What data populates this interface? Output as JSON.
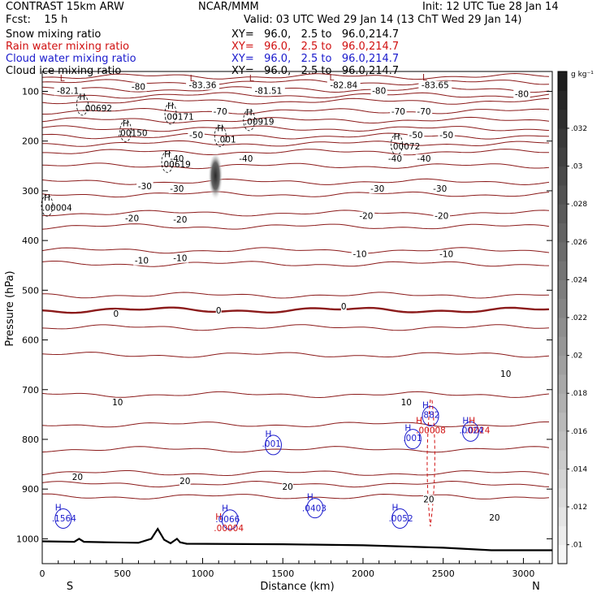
{
  "header": {
    "model": "CONTRAST 15km ARW",
    "org": "NCAR/MMM",
    "init": "Init: 12 UTC Tue 28 Jan 14",
    "fcst": "Fcst:    15 h",
    "valid": "Valid: 03 UTC Wed 29 Jan 14 (13 ChT Wed 29 Jan 14)",
    "fields": [
      {
        "name": "Snow mixing ratio",
        "xy": "XY=   96.0,   2.5 to   96.0,214.7",
        "color": "#000000"
      },
      {
        "name": "Rain water mixing ratio",
        "xy": "XY=   96.0,   2.5 to   96.0,214.7",
        "color": "#d01010"
      },
      {
        "name": "Cloud water mixing ratio",
        "xy": "XY=   96.0,   2.5 to   96.0,214.7",
        "color": "#1a1acc"
      },
      {
        "name": "Cloud ice mixing ratio",
        "xy": "XY=   96.0,   2.5 to   96.0,214.7",
        "color": "#000000"
      }
    ]
  },
  "chart_data": {
    "type": "contour",
    "xlabel": "Distance (km)",
    "ylabel": "Pressure (hPa)",
    "xlim": [
      0,
      3180
    ],
    "ylim": [
      1050,
      60
    ],
    "x_ticks": [
      0,
      500,
      1000,
      1500,
      2000,
      2500,
      3000
    ],
    "x_tick_labels": [
      "0",
      "500",
      "1000",
      "1500",
      "2000",
      "2500",
      "3000"
    ],
    "y_ticks": [
      100,
      200,
      300,
      400,
      500,
      600,
      700,
      800,
      900,
      1000
    ],
    "y_tick_labels": [
      "100",
      "200",
      "300",
      "400",
      "500",
      "600",
      "700",
      "800",
      "900",
      "1000"
    ],
    "end_labels": {
      "left": "S",
      "right": "N"
    },
    "colorbar": {
      "unit": "g kg⁻¹",
      "ticks": [
        ".01",
        ".012",
        ".014",
        ".016",
        ".018",
        ".02",
        ".022",
        ".024",
        ".026",
        ".028",
        ".03",
        ".032"
      ],
      "range": [
        0.009,
        0.035
      ]
    },
    "temperature_contours": {
      "color": "#8b1a1a",
      "levels": [
        -80,
        -70,
        -60,
        -50,
        -40,
        -30,
        -20,
        -10,
        0,
        10,
        20
      ],
      "lines": [
        {
          "level": "",
          "p": 70
        },
        {
          "level": "",
          "p": 82
        },
        {
          "level": "-80",
          "p": 96
        },
        {
          "level": "",
          "p": 108
        },
        {
          "level": "",
          "p": 120
        },
        {
          "level": "-70",
          "p": 140
        },
        {
          "level": "",
          "p": 158
        },
        {
          "level": "",
          "p": 175
        },
        {
          "level": "-50",
          "p": 190
        },
        {
          "level": "",
          "p": 205
        },
        {
          "level": "-40",
          "p": 222
        },
        {
          "level": "",
          "p": 250
        },
        {
          "level": "-30",
          "p": 282
        },
        {
          "level": "",
          "p": 307
        },
        {
          "level": "-20",
          "p": 345
        },
        {
          "level": "",
          "p": 372
        },
        {
          "level": "-10",
          "p": 420
        },
        {
          "level": "",
          "p": 447
        },
        {
          "level": "",
          "p": 510
        },
        {
          "level": "0",
          "p": 540
        },
        {
          "level": "",
          "p": 575
        },
        {
          "level": "",
          "p": 630
        },
        {
          "level": "10",
          "p": 710
        },
        {
          "level": "",
          "p": 770
        },
        {
          "level": "",
          "p": 820
        },
        {
          "level": "20",
          "p": 868
        },
        {
          "level": "",
          "p": 890
        },
        {
          "level": "",
          "p": 915
        }
      ],
      "labels": [
        {
          "text": "-82.1",
          "x": 160,
          "p": 103
        },
        {
          "text": "-80",
          "x": 600,
          "p": 95
        },
        {
          "text": "-83.36",
          "x": 1000,
          "p": 92
        },
        {
          "text": "-81.51",
          "x": 1410,
          "p": 103
        },
        {
          "text": "-82.84",
          "x": 1880,
          "p": 92
        },
        {
          "text": "-80",
          "x": 2100,
          "p": 103
        },
        {
          "text": "-83.65",
          "x": 2450,
          "p": 92
        },
        {
          "text": "-80",
          "x": 2990,
          "p": 110
        },
        {
          "text": "-70",
          "x": 1110,
          "p": 145
        },
        {
          "text": "-70",
          "x": 2220,
          "p": 145
        },
        {
          "text": "-70",
          "x": 2380,
          "p": 145
        },
        {
          "text": "-50",
          "x": 960,
          "p": 192
        },
        {
          "text": "-50",
          "x": 2330,
          "p": 192
        },
        {
          "text": "-50",
          "x": 2520,
          "p": 192
        },
        {
          "text": "-40",
          "x": 840,
          "p": 240
        },
        {
          "text": "-40",
          "x": 1270,
          "p": 240
        },
        {
          "text": "-40",
          "x": 2200,
          "p": 240
        },
        {
          "text": "-40",
          "x": 2380,
          "p": 240
        },
        {
          "text": "-30",
          "x": 640,
          "p": 295
        },
        {
          "text": "-30",
          "x": 840,
          "p": 300
        },
        {
          "text": "-30",
          "x": 2090,
          "p": 300
        },
        {
          "text": "-30",
          "x": 2480,
          "p": 300
        },
        {
          "text": "-20",
          "x": 560,
          "p": 360
        },
        {
          "text": "-20",
          "x": 860,
          "p": 362
        },
        {
          "text": "-20",
          "x": 2020,
          "p": 355
        },
        {
          "text": "-20",
          "x": 2490,
          "p": 355
        },
        {
          "text": "-10",
          "x": 620,
          "p": 445
        },
        {
          "text": "-10",
          "x": 860,
          "p": 440
        },
        {
          "text": "-10",
          "x": 1980,
          "p": 432
        },
        {
          "text": "-10",
          "x": 2520,
          "p": 432
        },
        {
          "text": "0",
          "x": 460,
          "p": 552
        },
        {
          "text": "0",
          "x": 1100,
          "p": 545
        },
        {
          "text": "0",
          "x": 1880,
          "p": 537
        },
        {
          "text": "10",
          "x": 470,
          "p": 730
        },
        {
          "text": "10",
          "x": 2270,
          "p": 730
        },
        {
          "text": "10",
          "x": 2890,
          "p": 673
        },
        {
          "text": "20",
          "x": 220,
          "p": 880
        },
        {
          "text": "20",
          "x": 890,
          "p": 888
        },
        {
          "text": "20",
          "x": 1530,
          "p": 900
        },
        {
          "text": "20",
          "x": 2410,
          "p": 925
        },
        {
          "text": "20",
          "x": 2820,
          "p": 962
        }
      ]
    },
    "terrain": {
      "color": "#000000",
      "x": [
        0,
        200,
        230,
        260,
        400,
        600,
        680,
        720,
        760,
        800,
        840,
        860,
        900,
        1500,
        2000,
        2500,
        2800,
        3180
      ],
      "p": [
        1005,
        1006,
        1000,
        1006,
        1007,
        1008,
        1000,
        980,
        1002,
        1009,
        1000,
        1007,
        1010,
        1011,
        1013,
        1018,
        1023,
        1023
      ]
    },
    "snow": {
      "color": "#000000",
      "maxima": [
        {
          "text": ".00692",
          "x": 250,
          "p": 140,
          "h_x": 230,
          "h_p": 117
        },
        {
          "text": ".00150",
          "x": 470,
          "p": 190,
          "h_x": 500,
          "h_p": 170
        },
        {
          "text": ".00171",
          "x": 760,
          "p": 157,
          "h_x": 780,
          "h_p": 135
        },
        {
          "text": ".00919",
          "x": 1260,
          "p": 167,
          "h_x": 1270,
          "h_p": 148
        },
        {
          "text": ".001",
          "x": 1090,
          "p": 203,
          "h_x": 1090,
          "h_p": 180
        },
        {
          "text": ".00619",
          "x": 740,
          "p": 253,
          "h_x": 760,
          "h_p": 232
        },
        {
          "text": ".00072",
          "x": 2170,
          "p": 217,
          "h_x": 2190,
          "h_p": 197
        },
        {
          "text": ".00004",
          "x": 0,
          "p": 340,
          "h_x": 10,
          "h_p": 320
        }
      ],
      "lows": [
        {
          "x": 110,
          "p": 80
        },
        {
          "x": 920,
          "p": 80
        },
        {
          "x": 1290,
          "p": 80
        },
        {
          "x": 1790,
          "p": 78
        },
        {
          "x": 2370,
          "p": 78
        }
      ]
    },
    "ice_blob": {
      "x": 1080,
      "p": 270,
      "max": 0.034
    },
    "rain": {
      "color": "#d01010",
      "maxima": [
        {
          "text": ".00004",
          "x": 1070,
          "p": 985,
          "h_x": 1080,
          "h_p": 962
        },
        {
          "text": ".00008",
          "x": 2330,
          "p": 788,
          "h_x": 2330,
          "h_p": 768
        },
        {
          "text": ".0024",
          "x": 2640,
          "p": 788,
          "h_x": 2660,
          "h_p": 768
        }
      ]
    },
    "cloud_water": {
      "color": "#1a1acc",
      "maxima": [
        {
          "text": ".1564",
          "x": 60,
          "p": 965,
          "h_x": 80,
          "h_p": 943
        },
        {
          "text": ".0066",
          "x": 1080,
          "p": 967,
          "h_x": 1120,
          "h_p": 945
        },
        {
          "text": ".001",
          "x": 1370,
          "p": 815,
          "h_x": 1390,
          "h_p": 795
        },
        {
          "text": ".0403",
          "x": 1620,
          "p": 945,
          "h_x": 1650,
          "h_p": 922
        },
        {
          "text": ".0052",
          "x": 2160,
          "p": 965,
          "h_x": 2180,
          "h_p": 943
        },
        {
          "text": ".882",
          "x": 2360,
          "p": 757,
          "h_x": 2370,
          "h_p": 737
        },
        {
          "text": ".001",
          "x": 2250,
          "p": 803,
          "h_x": 2260,
          "h_p": 783
        },
        {
          "text": ".0024",
          "x": 2600,
          "p": 788,
          "h_x": 2620,
          "h_p": 768
        }
      ]
    }
  }
}
